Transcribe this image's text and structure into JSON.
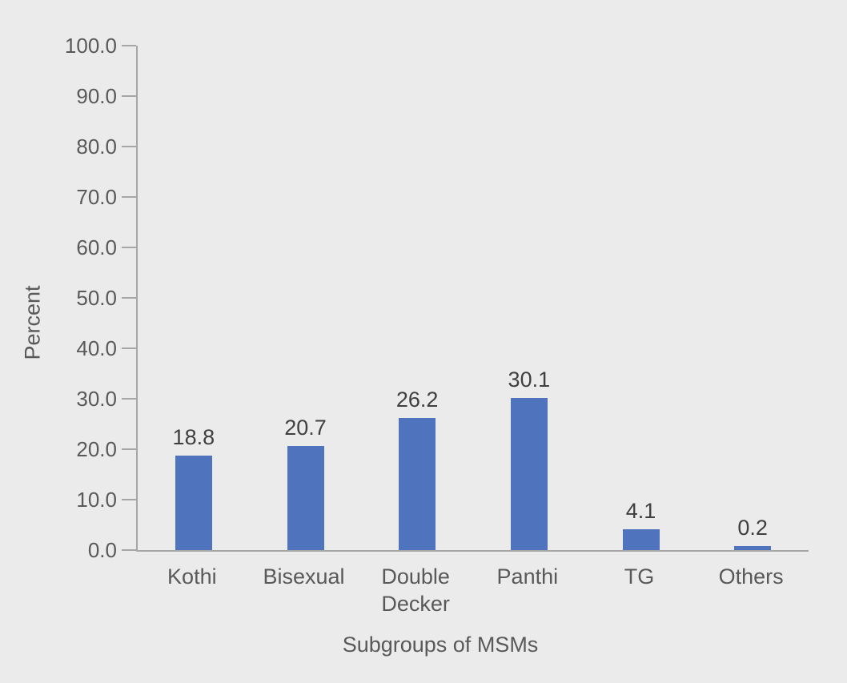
{
  "chart_data": {
    "type": "bar",
    "title": "",
    "categories": [
      "Kothi",
      "Bisexual",
      "Double Decker",
      "Panthi",
      "TG",
      "Others"
    ],
    "values": [
      18.8,
      20.7,
      26.2,
      30.1,
      4.1,
      0.2
    ],
    "data_labels": [
      "18.8",
      "20.7",
      "26.2",
      "30.1",
      "4.1",
      "0.2"
    ],
    "xlabel": "Subgroups of MSMs",
    "ylabel": "Percent",
    "ylim": [
      0,
      100
    ],
    "y_tick_step": 10,
    "y_tick_labels": [
      "0.0",
      "10.0",
      "20.0",
      "30.0",
      "40.0",
      "50.0",
      "60.0",
      "70.0",
      "80.0",
      "90.0",
      "100.0"
    ],
    "grid": false,
    "legend": "none",
    "colors": {
      "bar_fill": "#4f74bd",
      "background": "#ebebeb",
      "axis_line": "#a6a6a6",
      "axis_label": "#595959",
      "value_label": "#3f3f3f"
    }
  }
}
